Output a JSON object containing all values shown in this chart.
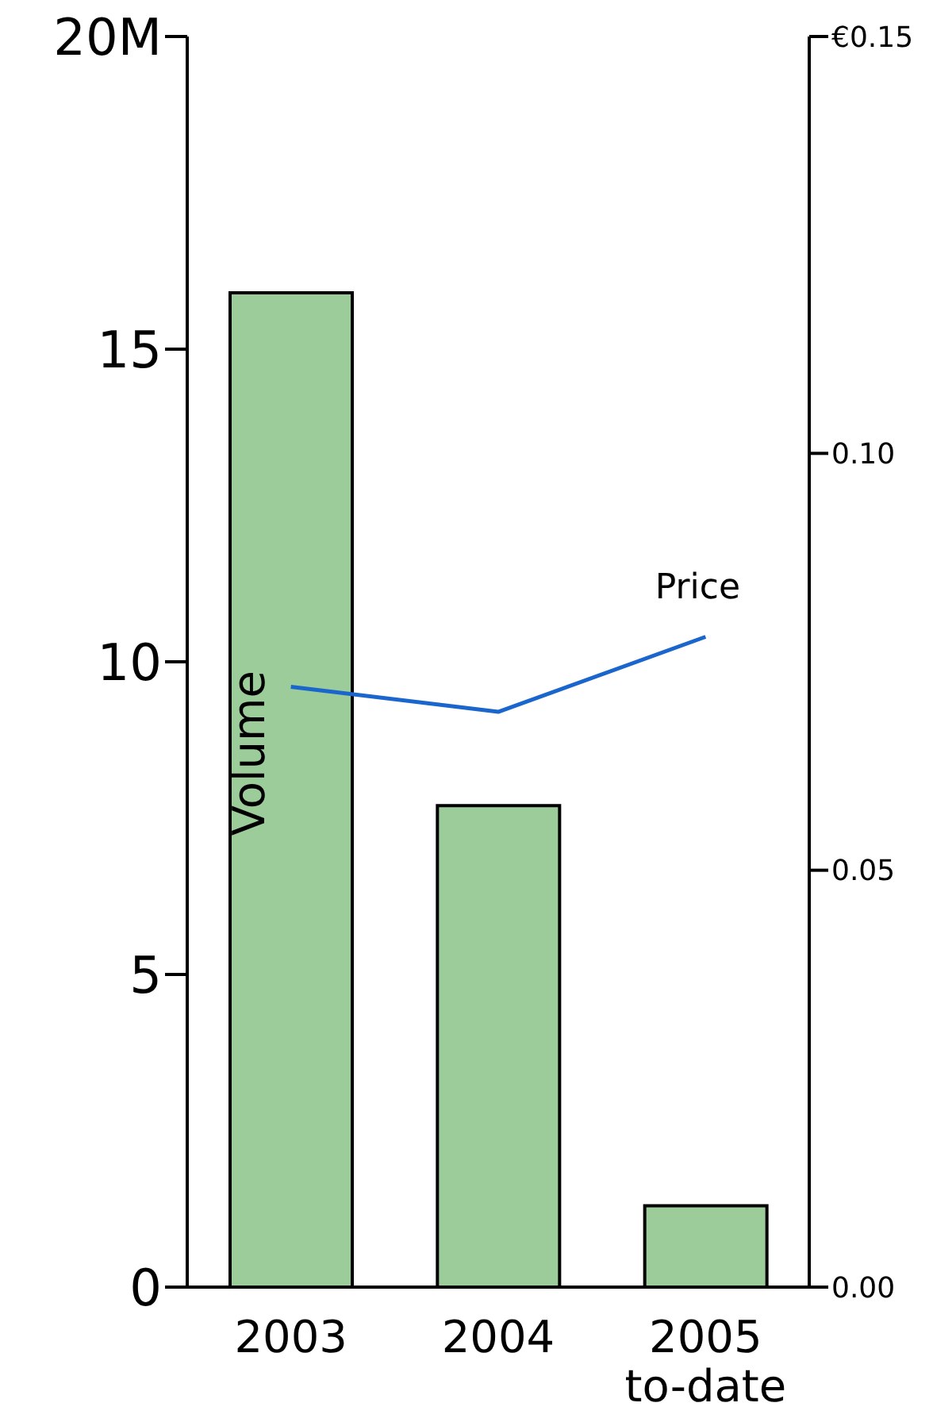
{
  "chart_data": {
    "type": "bar",
    "categories": [
      "2003",
      "2004",
      "2005 to-date"
    ],
    "series": [
      {
        "name": "Volume",
        "color": "#9ccc99",
        "values": [
          15.9,
          7.7,
          1.3
        ]
      },
      {
        "name": "Price",
        "type": "line",
        "axis": "y2",
        "color": "#1a66cc",
        "values": [
          0.072,
          0.069,
          0.078
        ]
      }
    ],
    "ylim": [
      0,
      20
    ],
    "yticks": [
      0,
      5,
      10,
      15,
      {
        "value": 20,
        "label": "20M"
      }
    ],
    "y2lim": [
      0,
      0.15
    ],
    "y2ticks": [
      {
        "value": 0,
        "label": "0.00"
      },
      {
        "value": 0.05,
        "label": "0.05"
      },
      {
        "value": 0.1,
        "label": "0.10"
      },
      {
        "value": 0.15,
        "label": "€0.15"
      }
    ],
    "grid": false,
    "legend": false
  }
}
